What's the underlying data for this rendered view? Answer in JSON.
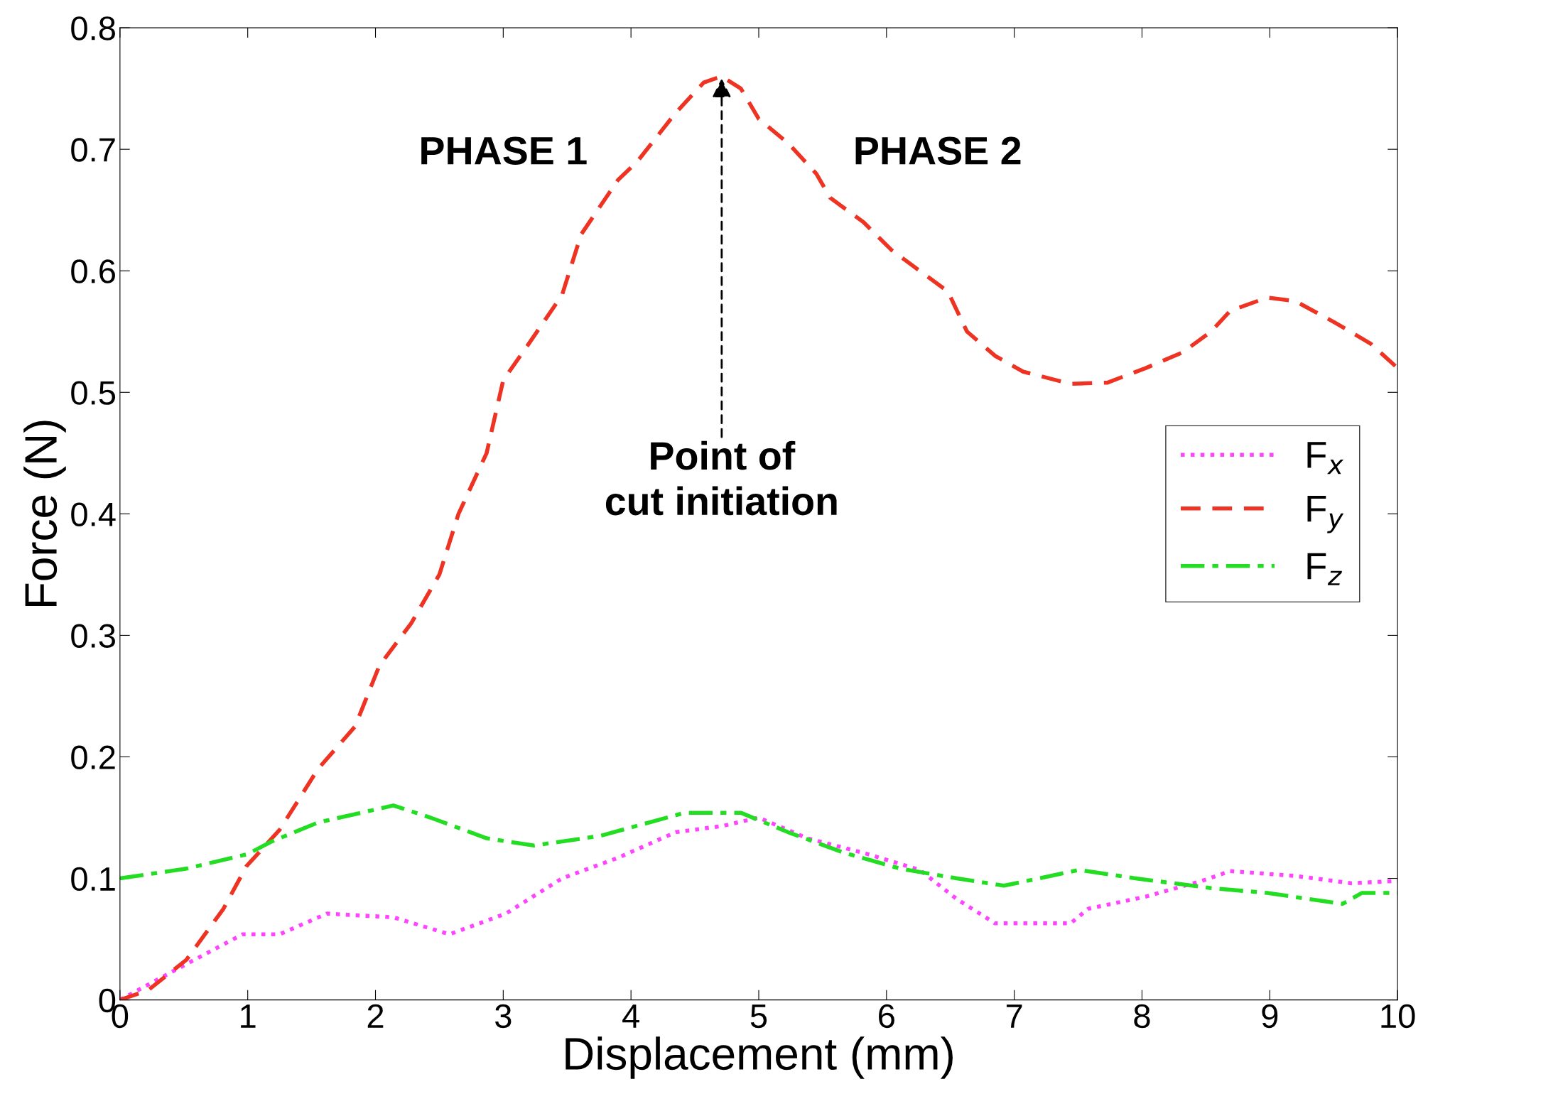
{
  "chart_data": {
    "type": "line",
    "xlabel": "Displacement (mm)",
    "ylabel": "Force (N)",
    "xlim": [
      0,
      10
    ],
    "ylim": [
      0,
      0.8
    ],
    "xticks": [
      0,
      1,
      2,
      3,
      4,
      5,
      6,
      7,
      8,
      9,
      10
    ],
    "yticks": [
      0,
      0.1,
      0.2,
      0.3,
      0.4,
      0.5,
      0.6,
      0.7,
      0.8
    ],
    "grid": false,
    "legend": "right",
    "annotations": [
      "PHASE 1",
      "PHASE 2",
      {
        "text": "Point of\ncut initiation",
        "x": 4.71,
        "y": 0.76
      }
    ],
    "series": [
      {
        "name": "F$_{x}$",
        "color": "#ff44ff",
        "line_style": "dotted",
        "x": [
          0,
          0.44,
          0.96,
          1.25,
          1.62,
          2.14,
          2.58,
          3.02,
          3.46,
          3.9,
          4.35,
          4.71,
          5.0,
          5.38,
          5.82,
          6.26,
          6.55,
          6.85,
          7.44,
          7.58,
          8.03,
          8.47,
          8.69,
          9.2,
          9.64,
          10
        ],
        "values": [
          0,
          0.025,
          0.054,
          0.054,
          0.071,
          0.068,
          0.054,
          0.071,
          0.1,
          0.117,
          0.138,
          0.143,
          0.15,
          0.133,
          0.121,
          0.107,
          0.083,
          0.063,
          0.063,
          0.075,
          0.085,
          0.098,
          0.106,
          0.102,
          0.096,
          0.098
        ]
      },
      {
        "name": "F$_{y}$",
        "color": "#ee3322",
        "line_style": "dashed",
        "x": [
          0,
          0.22,
          0.52,
          0.81,
          0.99,
          1.25,
          1.55,
          1.84,
          2.03,
          2.28,
          2.5,
          2.65,
          2.87,
          3.0,
          3.2,
          3.46,
          3.61,
          3.9,
          4.05,
          4.35,
          4.57,
          4.71,
          4.86,
          5.0,
          5.23,
          5.45,
          5.56,
          5.82,
          6.04,
          6.26,
          6.48,
          6.63,
          6.85,
          7.07,
          7.44,
          7.73,
          8.03,
          8.32,
          8.54,
          8.69,
          8.98,
          9.2,
          9.5,
          9.79,
          10
        ],
        "values": [
          0,
          0.008,
          0.033,
          0.075,
          0.11,
          0.14,
          0.19,
          0.225,
          0.275,
          0.31,
          0.35,
          0.4,
          0.45,
          0.51,
          0.54,
          0.58,
          0.63,
          0.675,
          0.69,
          0.73,
          0.755,
          0.76,
          0.75,
          0.725,
          0.705,
          0.68,
          0.66,
          0.64,
          0.617,
          0.6,
          0.583,
          0.55,
          0.53,
          0.517,
          0.507,
          0.508,
          0.52,
          0.533,
          0.55,
          0.567,
          0.578,
          0.575,
          0.558,
          0.54,
          0.52
        ]
      },
      {
        "name": "F$_{z}$",
        "color": "#22dd22",
        "line_style": "dashdot",
        "x": [
          0,
          0.52,
          1.0,
          1.18,
          1.55,
          2.14,
          2.43,
          2.87,
          3.24,
          3.76,
          4.42,
          4.86,
          5.23,
          5.67,
          6.11,
          6.55,
          6.92,
          7.51,
          7.95,
          8.54,
          8.98,
          9.57,
          9.72,
          10
        ],
        "values": [
          0.1,
          0.108,
          0.12,
          0.13,
          0.146,
          0.16,
          0.15,
          0.133,
          0.127,
          0.135,
          0.154,
          0.154,
          0.138,
          0.121,
          0.108,
          0.1,
          0.094,
          0.107,
          0.1,
          0.092,
          0.088,
          0.079,
          0.088,
          0.088
        ]
      }
    ]
  }
}
